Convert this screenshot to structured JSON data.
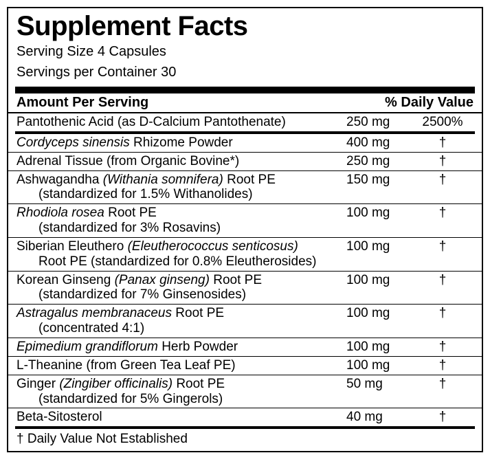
{
  "title": "Supplement Facts",
  "serving_size": "Serving Size 4 Capsules",
  "servings_per": "Servings per Container 30",
  "col_amount": "Amount Per Serving",
  "col_dv": "% Daily Value",
  "rows": [
    {
      "name": "Pantothenic Acid (as D-Calcium Pantothenate)",
      "amt": "250 mg",
      "dv": "2500%"
    },
    {
      "name_html": "<em class='sci'>Cordyceps sinensis</em> Rhizome Powder",
      "amt": "400 mg",
      "dv": "†"
    },
    {
      "name": "Adrenal Tissue (from Organic Bovine*)",
      "amt": "250 mg",
      "dv": "†"
    },
    {
      "name_html": "Ashwagandha <em class='sci'>(Withania somnifera)</em> Root PE<span class='sub'>(standardized for 1.5% Withanolides)</span>",
      "amt": "150 mg",
      "dv": "†"
    },
    {
      "name_html": "<em class='sci'>Rhodiola rosea</em> Root PE<span class='sub'>(standardized for 3% Rosavins)</span>",
      "amt": "100 mg",
      "dv": "†"
    },
    {
      "name_html": "Siberian Eleuthero <em class='sci'>(Eleutherococcus senticosus)</em><span class='sub'>Root PE (standardized for 0.8% Eleutherosides)</span>",
      "amt": "100 mg",
      "dv": "†"
    },
    {
      "name_html": "Korean Ginseng <em class='sci'>(Panax ginseng)</em> Root PE<span class='sub'>(standardized for 7% Ginsenosides)</span>",
      "amt": "100 mg",
      "dv": "†"
    },
    {
      "name_html": "<em class='sci'>Astragalus membranaceus</em> Root PE<span class='sub'>(concentrated 4:1)</span>",
      "amt": "100 mg",
      "dv": "†"
    },
    {
      "name_html": "<em class='sci'>Epimedium grandiflorum</em> Herb Powder",
      "amt": "100 mg",
      "dv": "†"
    },
    {
      "name": "L-Theanine (from Green Tea Leaf PE)",
      "amt": "100 mg",
      "dv": "†"
    },
    {
      "name_html": "Ginger <em class='sci'>(Zingiber officinalis)</em> Root PE<span class='sub'>(standardized for 5% Gingerols)</span>",
      "amt": "50 mg",
      "dv": "†"
    },
    {
      "name": "Beta-Sitosterol",
      "amt": "40 mg",
      "dv": "†"
    }
  ],
  "footnote": "† Daily Value Not Established"
}
